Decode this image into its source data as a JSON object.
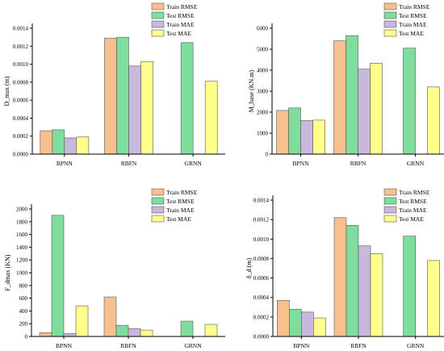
{
  "chart_data": [
    {
      "type": "bar",
      "categories": [
        "BPNN",
        "RBFN",
        "GRNN"
      ],
      "ylabel": "D_max (m)",
      "ylim": [
        0,
        0.0014
      ],
      "yticks": [
        "0.0000",
        "0.0002",
        "0.0004",
        "0.0006",
        "0.0008",
        "0.0010",
        "0.0012",
        "0.0014"
      ],
      "series": [
        {
          "name": "Train RMSE",
          "color": "#f8c08e",
          "values": [
            0.00026,
            0.00129,
            null
          ]
        },
        {
          "name": "Test RMSE",
          "color": "#7fdd9e",
          "values": [
            0.00027,
            0.0013,
            0.00124
          ]
        },
        {
          "name": "Train MAE",
          "color": "#c9b8de",
          "values": [
            0.00018,
            0.00098,
            null
          ]
        },
        {
          "name": "Test MAE",
          "color": "#ffff8c",
          "values": [
            0.00019,
            0.00103,
            0.00081
          ]
        }
      ],
      "legend_position": "top-right"
    },
    {
      "type": "bar",
      "categories": [
        "BPNN",
        "RBFN",
        "GRNN"
      ],
      "ylabel": "M_base (KN.m)",
      "ylim": [
        0,
        6000
      ],
      "yticks": [
        "0",
        "1000",
        "2000",
        "3000",
        "4000",
        "5000",
        "6000"
      ],
      "series": [
        {
          "name": "Train RMSE",
          "color": "#f8c08e",
          "values": [
            2080,
            5400,
            null
          ]
        },
        {
          "name": "Test RMSE",
          "color": "#7fdd9e",
          "values": [
            2200,
            5650,
            5050
          ]
        },
        {
          "name": "Train MAE",
          "color": "#c9b8de",
          "values": [
            1600,
            4050,
            null
          ]
        },
        {
          "name": "Test MAE",
          "color": "#ffff8c",
          "values": [
            1620,
            4330,
            3200
          ]
        }
      ],
      "legend_position": "top-right"
    },
    {
      "type": "bar",
      "categories": [
        "BPNN",
        "RBFN",
        "GRNN"
      ],
      "ylabel": "F_dmax (KN)",
      "ylim": [
        0,
        2000
      ],
      "yticks": [
        "0",
        "200",
        "400",
        "600",
        "800",
        "1000",
        "1200",
        "1400",
        "1600",
        "1800",
        "2000"
      ],
      "series": [
        {
          "name": "Train RMSE",
          "color": "#f8c08e",
          "values": [
            60,
            620,
            null
          ]
        },
        {
          "name": "Test RMSE",
          "color": "#7fdd9e",
          "values": [
            1900,
            175,
            240
          ]
        },
        {
          "name": "Train MAE",
          "color": "#c9b8de",
          "values": [
            45,
            125,
            null
          ]
        },
        {
          "name": "Test MAE",
          "color": "#ffff8c",
          "values": [
            480,
            100,
            190
          ]
        }
      ],
      "legend_position": "top-right"
    },
    {
      "type": "bar",
      "categories": [
        "BPNN",
        "RBFN",
        "GRNN"
      ],
      "ylabel": "δ_d (m)",
      "ylim": [
        0,
        0.0014
      ],
      "yticks": [
        "0.0000",
        "0.0002",
        "0.0004",
        "0.0006",
        "0.0008",
        "0.0010",
        "0.0012",
        "0.0014"
      ],
      "series": [
        {
          "name": "Train RMSE",
          "color": "#f8c08e",
          "values": [
            0.00037,
            0.00122,
            null
          ]
        },
        {
          "name": "Test RMSE",
          "color": "#7fdd9e",
          "values": [
            0.00028,
            0.00114,
            0.00103
          ]
        },
        {
          "name": "Train MAE",
          "color": "#c9b8de",
          "values": [
            0.00025,
            0.00093,
            null
          ]
        },
        {
          "name": "Test MAE",
          "color": "#ffff8c",
          "values": [
            0.00019,
            0.00085,
            0.00078
          ]
        }
      ],
      "legend_position": "top-right"
    }
  ]
}
